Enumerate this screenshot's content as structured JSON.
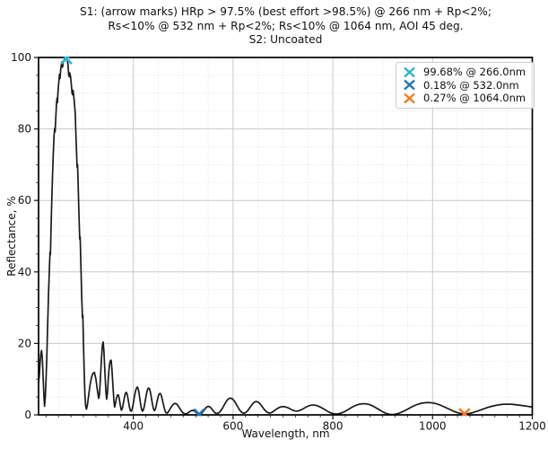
{
  "chart_data": {
    "type": "line",
    "title_lines": [
      "S1: (arrow marks) HRp > 97.5% (best effort >98.5%) @ 266 nm + Rp<2%;",
      "Rs<10% @ 532 nm + Rp<2%; Rs<10% @ 1064 nm, AOI 45 deg.",
      "S2: Uncoated"
    ],
    "xlabel": "Wavelength, nm",
    "ylabel": "Reflectance, %",
    "xlim": [
      210,
      1200
    ],
    "ylim": [
      0,
      100
    ],
    "x_major_ticks": [
      400,
      600,
      800,
      1000,
      1200
    ],
    "y_major_ticks": [
      0,
      20,
      40,
      60,
      80,
      100
    ],
    "x_minor_tick_step": 25,
    "x_minor_grid_step": 50,
    "y_minor_step": 5,
    "grid": "major solid + minor dotted",
    "legend_position": "upper right",
    "colors": {
      "curve": "#1a1a1a",
      "major_grid": "#c9c9c9",
      "minor_grid": "#dcdcdc",
      "spine": "#000000"
    },
    "markers": [
      {
        "label": "99.68% @ 266.0nm",
        "x": 266.0,
        "y": 99.68,
        "color": "#2ab5cf"
      },
      {
        "label": "0.18% @ 532.0nm",
        "x": 532.0,
        "y": 0.18,
        "color": "#1f77b4"
      },
      {
        "label": "0.27% @ 1064.0nm",
        "x": 1064.0,
        "y": 0.27,
        "color": "#f57c20"
      }
    ],
    "series": [
      {
        "name": "S1 reflectance vs wavelength",
        "points": [
          [
            210,
            9
          ],
          [
            211.5,
            11
          ],
          [
            213,
            14.5
          ],
          [
            214.5,
            17
          ],
          [
            216,
            18
          ],
          [
            217.5,
            16
          ],
          [
            219,
            11
          ],
          [
            220.5,
            6
          ],
          [
            222,
            2.4
          ],
          [
            223.5,
            5
          ],
          [
            225,
            10
          ],
          [
            226.5,
            16
          ],
          [
            228,
            24
          ],
          [
            230,
            34
          ],
          [
            232,
            42
          ],
          [
            233,
            45.5
          ],
          [
            233.8,
            44.8
          ],
          [
            235,
            52
          ],
          [
            236.5,
            60
          ],
          [
            238,
            67
          ],
          [
            239.5,
            73
          ],
          [
            241,
            78
          ],
          [
            242.3,
            80.2
          ],
          [
            243.2,
            79.2
          ],
          [
            244.5,
            83
          ],
          [
            246,
            87.3
          ],
          [
            247,
            88.6
          ],
          [
            247.8,
            87.4
          ],
          [
            249,
            90.5
          ],
          [
            250.5,
            93
          ],
          [
            252,
            95.3
          ],
          [
            253,
            94.1
          ],
          [
            254.5,
            96.8
          ],
          [
            256,
            98.2
          ],
          [
            257.2,
            98.8
          ],
          [
            258.2,
            97.3
          ],
          [
            259.5,
            98.7
          ],
          [
            261,
            99.3
          ],
          [
            263,
            99.6
          ],
          [
            265,
            99.68
          ],
          [
            266,
            99.7
          ],
          [
            267.5,
            99.3
          ],
          [
            269,
            98
          ],
          [
            270.3,
            95.2
          ],
          [
            271.5,
            94.6
          ],
          [
            272.5,
            95.7
          ],
          [
            274,
            94.8
          ],
          [
            275.5,
            92.8
          ],
          [
            277,
            90.2
          ],
          [
            278,
            89.6
          ],
          [
            279.2,
            90.8
          ],
          [
            280.5,
            89.3
          ],
          [
            282,
            87
          ],
          [
            283.5,
            84.5
          ],
          [
            284.5,
            80
          ],
          [
            286,
            74
          ],
          [
            287.3,
            69.3
          ],
          [
            288.2,
            70
          ],
          [
            289.5,
            64
          ],
          [
            291,
            56
          ],
          [
            292.5,
            49.2
          ],
          [
            293.4,
            49.8
          ],
          [
            295,
            41
          ],
          [
            296.5,
            33
          ],
          [
            298,
            27.2
          ],
          [
            298.8,
            27.8
          ],
          [
            300,
            20
          ],
          [
            301.5,
            12
          ],
          [
            303,
            5.5
          ],
          [
            304.5,
            2.4
          ],
          [
            306,
            1.6
          ],
          [
            308,
            2.8
          ],
          [
            310,
            5
          ],
          [
            313,
            8.2
          ],
          [
            316,
            10.4
          ],
          [
            319,
            11.6
          ],
          [
            322,
            11.9
          ],
          [
            325,
            10
          ],
          [
            328,
            6.8
          ],
          [
            330.5,
            4.6
          ],
          [
            332,
            5.5
          ],
          [
            334,
            10
          ],
          [
            336,
            15.5
          ],
          [
            338,
            19.5
          ],
          [
            339.5,
            20.4
          ],
          [
            341,
            18
          ],
          [
            343,
            12
          ],
          [
            345,
            6.5
          ],
          [
            346.5,
            4.4
          ],
          [
            348,
            6
          ],
          [
            350,
            10.5
          ],
          [
            352,
            13.8
          ],
          [
            354,
            15.2
          ],
          [
            355.5,
            15.3
          ],
          [
            357,
            13
          ],
          [
            359,
            8.5
          ],
          [
            361,
            4
          ],
          [
            362.5,
            2.2
          ],
          [
            364,
            3
          ],
          [
            366,
            4.6
          ],
          [
            368,
            5.5
          ],
          [
            370,
            5.6
          ],
          [
            372,
            4.4
          ],
          [
            374,
            2.6
          ],
          [
            376,
            1.3
          ],
          [
            378,
            1.8
          ],
          [
            380,
            3.2
          ],
          [
            382,
            4.8
          ],
          [
            384,
            6
          ],
          [
            386,
            6.3
          ],
          [
            388,
            5.6
          ],
          [
            390,
            4
          ],
          [
            392,
            2.3
          ],
          [
            394,
            1.2
          ],
          [
            396,
            1
          ],
          [
            398,
            1.8
          ],
          [
            400,
            3.2
          ],
          [
            402,
            5
          ],
          [
            404,
            6.4
          ],
          [
            406,
            7.4
          ],
          [
            408,
            7.8
          ],
          [
            410,
            7.2
          ],
          [
            412,
            5.6
          ],
          [
            414,
            3.6
          ],
          [
            416,
            1.9
          ],
          [
            418,
            1.05
          ],
          [
            420,
            1.3
          ],
          [
            422,
            2.4
          ],
          [
            424,
            4
          ],
          [
            426,
            5.6
          ],
          [
            428,
            6.9
          ],
          [
            430,
            7.5
          ],
          [
            432,
            7.4
          ],
          [
            434,
            6.5
          ],
          [
            436,
            5
          ],
          [
            438,
            3.3
          ],
          [
            440,
            1.9
          ],
          [
            442,
            1.2
          ],
          [
            444,
            1.5
          ],
          [
            446,
            2.6
          ],
          [
            448,
            4
          ],
          [
            450,
            5.2
          ],
          [
            452,
            5.9
          ],
          [
            454,
            6
          ],
          [
            456,
            5.5
          ],
          [
            458,
            4.4
          ],
          [
            460,
            3.1
          ],
          [
            462,
            1.9
          ],
          [
            464,
            1
          ],
          [
            466,
            0.55
          ],
          [
            468,
            0.5
          ],
          [
            470,
            0.8
          ],
          [
            473,
            1.5
          ],
          [
            476,
            2.2
          ],
          [
            479,
            2.8
          ],
          [
            482,
            3.15
          ],
          [
            485,
            3.2
          ],
          [
            488,
            2.9
          ],
          [
            491,
            2.3
          ],
          [
            494,
            1.6
          ],
          [
            497,
            0.95
          ],
          [
            500,
            0.5
          ],
          [
            503,
            0.3
          ],
          [
            506,
            0.3
          ],
          [
            509,
            0.5
          ],
          [
            512,
            0.8
          ],
          [
            515,
            1.1
          ],
          [
            518,
            1.25
          ],
          [
            521,
            1.2
          ],
          [
            524,
            0.9
          ],
          [
            527,
            0.55
          ],
          [
            530,
            0.28
          ],
          [
            532,
            0.18
          ],
          [
            534,
            0.22
          ],
          [
            537,
            0.45
          ],
          [
            540,
            0.9
          ],
          [
            543,
            1.5
          ],
          [
            546,
            2.05
          ],
          [
            549,
            2.35
          ],
          [
            552,
            2.35
          ],
          [
            555,
            2.05
          ],
          [
            558,
            1.55
          ],
          [
            561,
            1
          ],
          [
            564,
            0.55
          ],
          [
            567,
            0.35
          ],
          [
            570,
            0.45
          ],
          [
            574,
            0.9
          ],
          [
            578,
            1.7
          ],
          [
            582,
            2.7
          ],
          [
            586,
            3.7
          ],
          [
            590,
            4.4
          ],
          [
            594,
            4.7
          ],
          [
            598,
            4.55
          ],
          [
            602,
            4
          ],
          [
            606,
            3.1
          ],
          [
            610,
            2.1
          ],
          [
            614,
            1.2
          ],
          [
            618,
            0.6
          ],
          [
            622,
            0.45
          ],
          [
            626,
            0.7
          ],
          [
            630,
            1.3
          ],
          [
            634,
            2.1
          ],
          [
            638,
            2.9
          ],
          [
            642,
            3.5
          ],
          [
            646,
            3.75
          ],
          [
            650,
            3.6
          ],
          [
            654,
            3.1
          ],
          [
            658,
            2.4
          ],
          [
            662,
            1.6
          ],
          [
            666,
            1
          ],
          [
            670,
            0.6
          ],
          [
            674,
            0.5
          ],
          [
            678,
            0.7
          ],
          [
            683,
            1.2
          ],
          [
            688,
            1.7
          ],
          [
            693,
            2.1
          ],
          [
            698,
            2.3
          ],
          [
            703,
            2.3
          ],
          [
            708,
            2.1
          ],
          [
            713,
            1.8
          ],
          [
            718,
            1.4
          ],
          [
            723,
            1.15
          ],
          [
            728,
            1.05
          ],
          [
            733,
            1.2
          ],
          [
            738,
            1.5
          ],
          [
            743,
            1.9
          ],
          [
            748,
            2.3
          ],
          [
            753,
            2.6
          ],
          [
            758,
            2.75
          ],
          [
            763,
            2.75
          ],
          [
            768,
            2.6
          ],
          [
            774,
            2.25
          ],
          [
            780,
            1.8
          ],
          [
            786,
            1.3
          ],
          [
            792,
            0.8
          ],
          [
            798,
            0.45
          ],
          [
            804,
            0.25
          ],
          [
            810,
            0.25
          ],
          [
            817,
            0.5
          ],
          [
            824,
            0.95
          ],
          [
            831,
            1.5
          ],
          [
            838,
            2.1
          ],
          [
            845,
            2.6
          ],
          [
            852,
            2.95
          ],
          [
            859,
            3.1
          ],
          [
            866,
            3.1
          ],
          [
            873,
            2.9
          ],
          [
            880,
            2.5
          ],
          [
            887,
            1.95
          ],
          [
            894,
            1.35
          ],
          [
            901,
            0.8
          ],
          [
            908,
            0.35
          ],
          [
            915,
            0.12
          ],
          [
            922,
            0.1
          ],
          [
            929,
            0.3
          ],
          [
            936,
            0.65
          ],
          [
            944,
            1.15
          ],
          [
            952,
            1.75
          ],
          [
            960,
            2.35
          ],
          [
            968,
            2.85
          ],
          [
            976,
            3.2
          ],
          [
            984,
            3.4
          ],
          [
            992,
            3.45
          ],
          [
            1000,
            3.35
          ],
          [
            1008,
            3.1
          ],
          [
            1016,
            2.7
          ],
          [
            1024,
            2.2
          ],
          [
            1032,
            1.7
          ],
          [
            1040,
            1.15
          ],
          [
            1048,
            0.7
          ],
          [
            1056,
            0.4
          ],
          [
            1064,
            0.27
          ],
          [
            1072,
            0.35
          ],
          [
            1080,
            0.6
          ],
          [
            1090,
            1.05
          ],
          [
            1100,
            1.55
          ],
          [
            1110,
            2.05
          ],
          [
            1120,
            2.45
          ],
          [
            1130,
            2.75
          ],
          [
            1140,
            2.95
          ],
          [
            1150,
            3.0
          ],
          [
            1160,
            2.95
          ],
          [
            1170,
            2.8
          ],
          [
            1180,
            2.6
          ],
          [
            1190,
            2.4
          ],
          [
            1200,
            2.2
          ]
        ]
      }
    ]
  }
}
